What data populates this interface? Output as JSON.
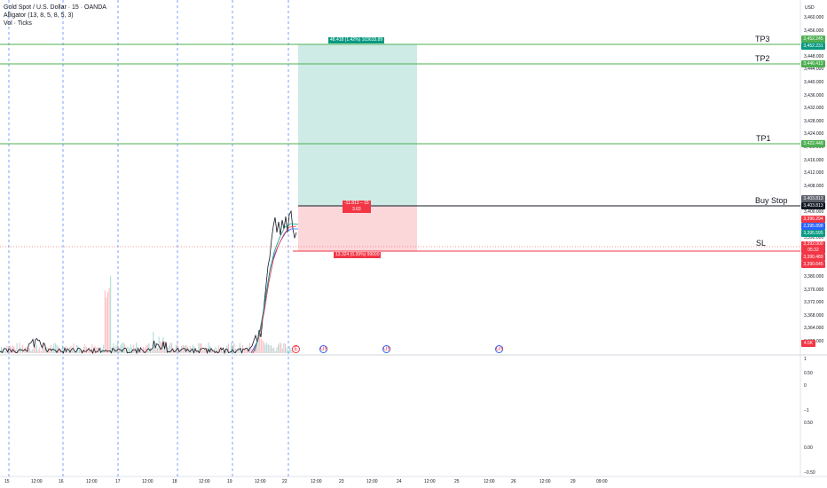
{
  "header": {
    "symbol_line": "Gold Spot / U.S. Dollar · 15 · OANDA",
    "indicator_1": "Alligator (13, 8, 5, 8, 5, 3)",
    "indicator_2": "Vol · Ticks"
  },
  "price_axis": {
    "currency": "USD",
    "ticks": [
      "3,460.000",
      "3,456.000",
      "3,452.000",
      "3,448.000",
      "3,444.000",
      "3,440.000",
      "3,436.000",
      "3,432.000",
      "3,428.000",
      "3,424.000",
      "3,420.000",
      "3,416.000",
      "3,412.000",
      "3,408.000",
      "3,404.000",
      "3,400.000",
      "3,396.000",
      "3,392.000",
      "3,388.000",
      "3,384.000",
      "3,380.000",
      "3,376.000",
      "3,372.000",
      "3,368.000",
      "3,364.000",
      "3,360.000"
    ],
    "lower_ticks": [
      "1",
      "0.50",
      "0",
      "−1",
      "0.50",
      "0.00",
      "−0.50"
    ]
  },
  "price_tags": {
    "tp3_a": "3,452.245",
    "tp3_b": "3,452.231",
    "tp2": "3,446.412",
    "tp1": "3,422.448",
    "buy_a": "3,403.813",
    "buy_b": "3,403.813",
    "cur_1": "3,396.294",
    "cur_2": "2,395.898",
    "cur_3": "3,395.595",
    "sl": "3,392.000",
    "sl_timer": "05:32",
    "low_1": "3,390.489",
    "low_2": "3,390.645",
    "vol": "4.5K"
  },
  "levels": {
    "tp3": "TP3",
    "tp2": "TP2",
    "tp1": "TP1",
    "buy_stop": "Buy Stop",
    "sl": "SL"
  },
  "position": {
    "target_label": "48.418 (1.42%) 103633.89",
    "entry_label_1": "-11.813 – 15",
    "entry_label_2": "3.63",
    "stop_label": "13.324 (0.39%) 99000"
  },
  "time_axis": [
    "15",
    "12:00",
    "16",
    "12:00",
    "17",
    "12:00",
    "18",
    "12:00",
    "19",
    "12:00",
    "22",
    "12:00",
    "23",
    "12:00",
    "24",
    "12:00",
    "25",
    "12:00",
    "26",
    "12:00",
    "29",
    "09:00"
  ],
  "events": [
    "E",
    "US",
    "US",
    "US"
  ],
  "colors": {
    "green": "#089981",
    "red": "#f23645",
    "blue": "#2962ff",
    "line_green": "#4caf50"
  }
}
